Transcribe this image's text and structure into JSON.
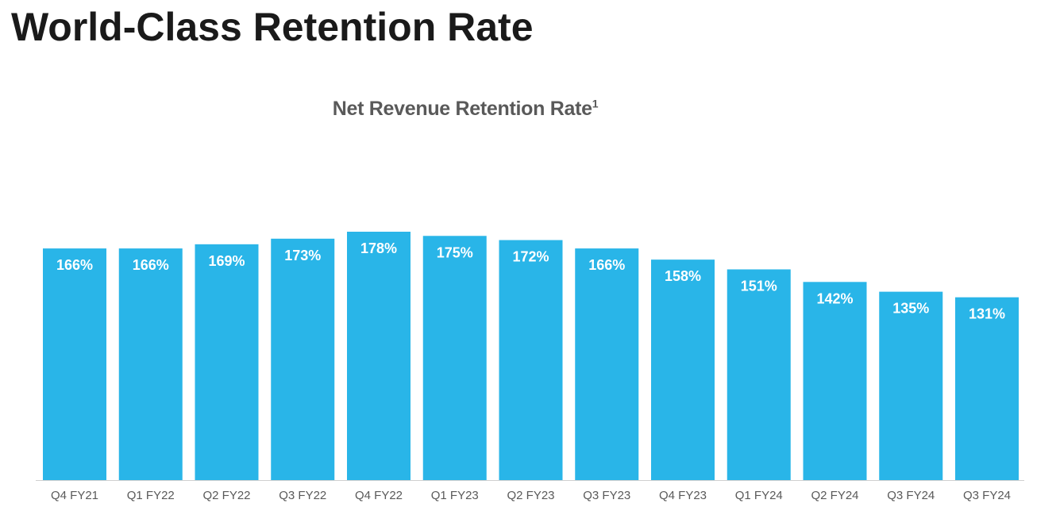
{
  "page": {
    "title": "World-Class Retention Rate"
  },
  "colors": {
    "bar": "#29b5e8",
    "axis": "#d0d0d0",
    "title": "#1a1a1a",
    "subtitle": "#595959",
    "bar_label": "#ffffff",
    "tick_label": "#595959"
  },
  "chart_data": {
    "type": "bar",
    "title": "Net Revenue Retention Rate",
    "title_superscript": "1",
    "xlabel": "",
    "ylabel": "",
    "unit": "%",
    "ylim": [
      0,
      178
    ],
    "grid": false,
    "legend": "none",
    "categories": [
      "Q4 FY21",
      "Q1 FY22",
      "Q2 FY22",
      "Q3 FY22",
      "Q4 FY22",
      "Q1 FY23",
      "Q2 FY23",
      "Q3 FY23",
      "Q4 FY23",
      "Q1 FY24",
      "Q2 FY24",
      "Q3 FY24",
      "Q3 FY24"
    ],
    "values": [
      166,
      166,
      169,
      173,
      178,
      175,
      172,
      166,
      158,
      151,
      142,
      135,
      131
    ],
    "data_labels": [
      "166%",
      "166%",
      "169%",
      "173%",
      "178%",
      "175%",
      "172%",
      "166%",
      "158%",
      "151%",
      "142%",
      "135%",
      "131%"
    ]
  }
}
